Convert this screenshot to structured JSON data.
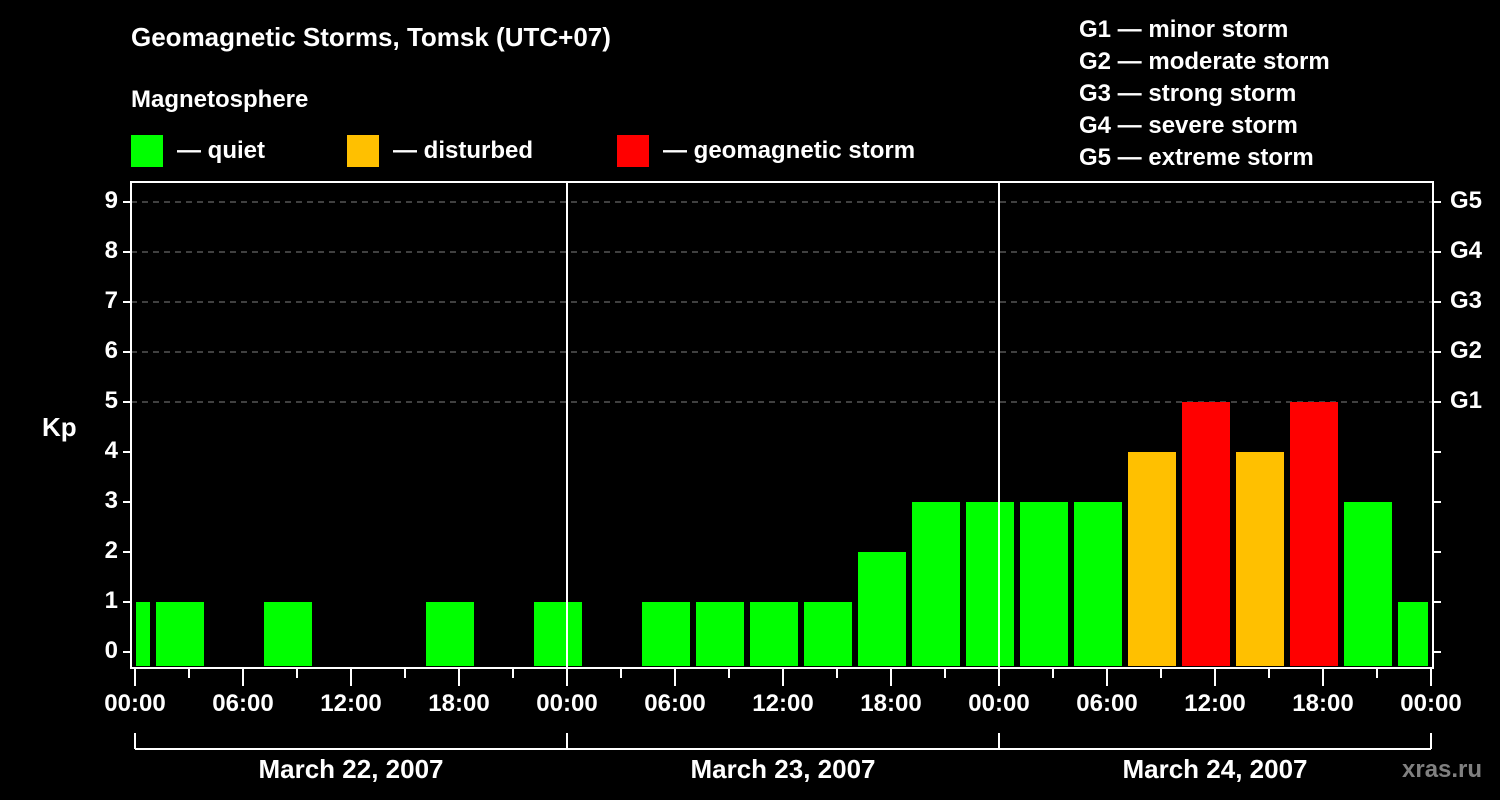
{
  "header": {
    "title": "Geomagnetic Storms, Tomsk (UTC+07)",
    "subtitle": "Magnetosphere"
  },
  "legend": [
    {
      "label": "— quiet",
      "color": "#00ff00"
    },
    {
      "label": "— disturbed",
      "color": "#ffc000"
    },
    {
      "label": "— geomagnetic storm",
      "color": "#ff0000"
    }
  ],
  "g_legend": [
    "G1 — minor storm",
    "G2 — moderate storm",
    "G3 — strong storm",
    "G4 — severe storm",
    "G5 — extreme storm"
  ],
  "axes": {
    "ylabel": "Kp",
    "yticks": [
      "0",
      "1",
      "2",
      "3",
      "4",
      "5",
      "6",
      "7",
      "8",
      "9"
    ],
    "gticks": [
      "G1",
      "G2",
      "G3",
      "G4",
      "G5"
    ],
    "xticks": [
      "00:00",
      "06:00",
      "12:00",
      "18:00",
      "00:00",
      "06:00",
      "12:00",
      "18:00",
      "00:00",
      "06:00",
      "12:00",
      "18:00",
      "00:00"
    ],
    "dates": [
      "March 22, 2007",
      "March 23, 2007",
      "March 24, 2007"
    ]
  },
  "watermark": "xras.ru",
  "colors": {
    "quiet": "#00ff00",
    "disturbed": "#ffc000",
    "storm": "#ff0000",
    "grid": "#808080",
    "axis": "#ffffff",
    "background": "#000000"
  },
  "chart_data": {
    "type": "bar",
    "title": "Geomagnetic Storms, Tomsk (UTC+07)",
    "subtitle": "Magnetosphere",
    "xlabel": "",
    "ylabel": "Kp",
    "ylim": [
      0,
      9
    ],
    "y2_labels": {
      "5": "G1",
      "6": "G2",
      "7": "G3",
      "8": "G4",
      "9": "G5"
    },
    "grid": "dashed horizontal at Kp 5–9",
    "bin_hours": 3,
    "categories": [
      "Mar 22 00:00–01:00 (partial)",
      "Mar 22 01:00",
      "Mar 22 04:00",
      "Mar 22 07:00",
      "Mar 22 10:00",
      "Mar 22 13:00",
      "Mar 22 16:00",
      "Mar 22 19:00",
      "Mar 22 22:00",
      "Mar 23 01:00",
      "Mar 23 04:00",
      "Mar 23 07:00",
      "Mar 23 10:00",
      "Mar 23 13:00",
      "Mar 23 16:00",
      "Mar 23 19:00",
      "Mar 23 22:00",
      "Mar 24 01:00",
      "Mar 24 04:00",
      "Mar 24 07:00",
      "Mar 24 10:00",
      "Mar 24 13:00",
      "Mar 24 16:00",
      "Mar 24 19:00",
      "Mar 24 22:00 (partial)"
    ],
    "values": [
      1,
      1,
      0,
      1,
      0,
      0,
      1,
      0,
      1,
      0,
      1,
      1,
      1,
      1,
      2,
      3,
      3,
      3,
      3,
      4,
      5,
      4,
      5,
      3,
      1
    ],
    "status": [
      "quiet",
      "quiet",
      "quiet",
      "quiet",
      "quiet",
      "quiet",
      "quiet",
      "quiet",
      "quiet",
      "quiet",
      "quiet",
      "quiet",
      "quiet",
      "quiet",
      "quiet",
      "quiet",
      "quiet",
      "quiet",
      "quiet",
      "disturbed",
      "storm",
      "disturbed",
      "storm",
      "quiet",
      "quiet"
    ],
    "legend": [
      "quiet",
      "disturbed",
      "geomagnetic storm"
    ],
    "legend_position": "top"
  }
}
